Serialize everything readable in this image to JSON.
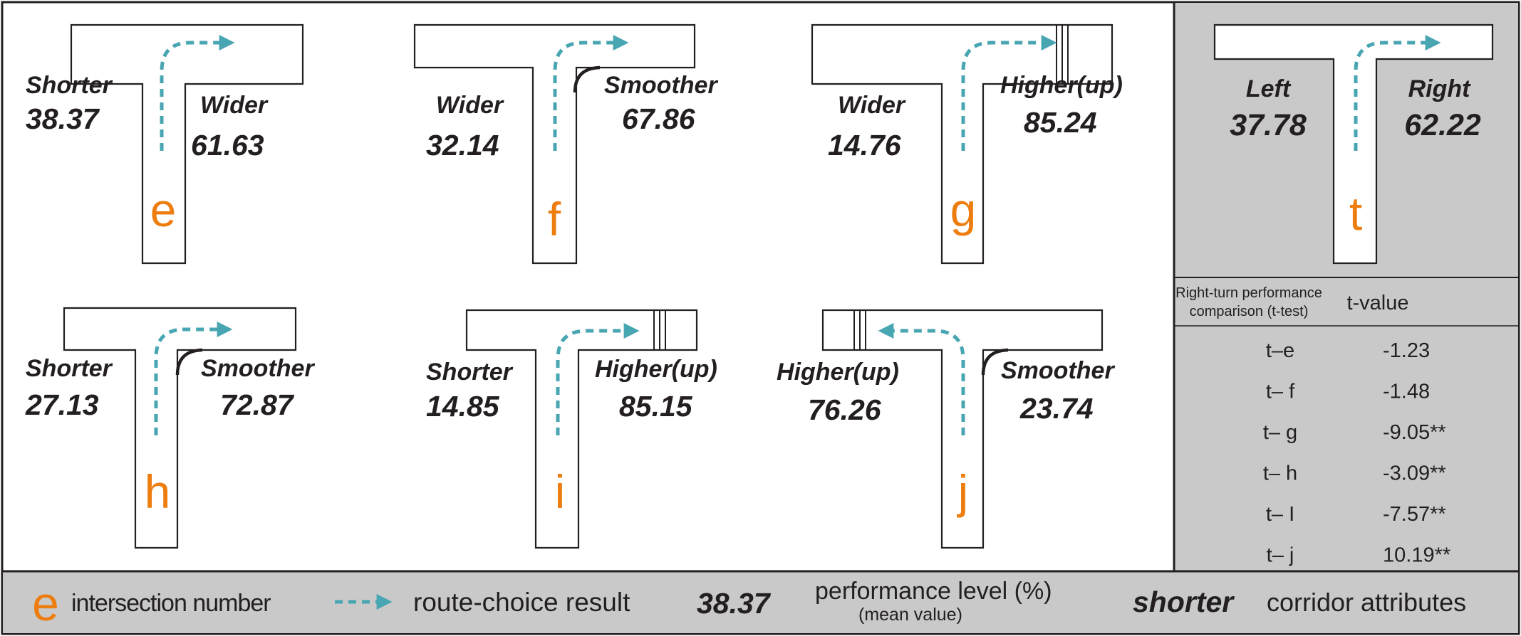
{
  "colors": {
    "route_arrow": "#48a5b2",
    "intersection_number": "#ee7d10",
    "text": "#231f20",
    "panel_gray": "#c9c9c9",
    "border": "#231f20"
  },
  "diagrams": [
    {
      "id": "e",
      "letter": "e",
      "left_label": "Shorter",
      "left_value": "38.37",
      "right_label": "Wider",
      "right_value": "61.63"
    },
    {
      "id": "f",
      "letter": "f",
      "left_label": "Wider",
      "left_value": "32.14",
      "right_label": "Smoother",
      "right_value": "67.86"
    },
    {
      "id": "g",
      "letter": "g",
      "left_label": "Wider",
      "left_value": "14.76",
      "right_label": "Higher(up)",
      "right_value": "85.24"
    },
    {
      "id": "h",
      "letter": "h",
      "left_label": "Shorter",
      "left_value": "27.13",
      "right_label": "Smoother",
      "right_value": "72.87"
    },
    {
      "id": "i",
      "letter": "i",
      "left_label": "Shorter",
      "left_value": "14.85",
      "right_label": "Higher(up)",
      "right_value": "85.15"
    },
    {
      "id": "j",
      "letter": "j",
      "left_label": "Higher(up)",
      "left_value": "76.26",
      "right_label": "Smoother",
      "right_value": "23.74"
    },
    {
      "id": "t",
      "letter": "t",
      "left_label": "Left",
      "left_value": "37.78",
      "right_label": "Right",
      "right_value": "62.22"
    }
  ],
  "ttest": {
    "header_comparison_line1": "Right-turn performance",
    "header_comparison_line2": "comparison (t-test)",
    "header_value": "t-value",
    "rows": [
      {
        "comparison": "t–e",
        "value": "-1.23"
      },
      {
        "comparison": "t– f",
        "value": "-1.48"
      },
      {
        "comparison": "t– g",
        "value": "-9.05**"
      },
      {
        "comparison": "t– h",
        "value": "-3.09**"
      },
      {
        "comparison": "t– I",
        "value": "-7.57**"
      },
      {
        "comparison": "t– j",
        "value": "10.19**"
      }
    ]
  },
  "legend": {
    "letter": "e",
    "intersection_label": "intersection number",
    "route_label": "route-choice result",
    "sample_value": "38.37",
    "performance_label": "performance level (%)",
    "performance_sub": "(mean value)",
    "sample_attribute": "shorter",
    "attribute_label": "corridor attributes"
  }
}
